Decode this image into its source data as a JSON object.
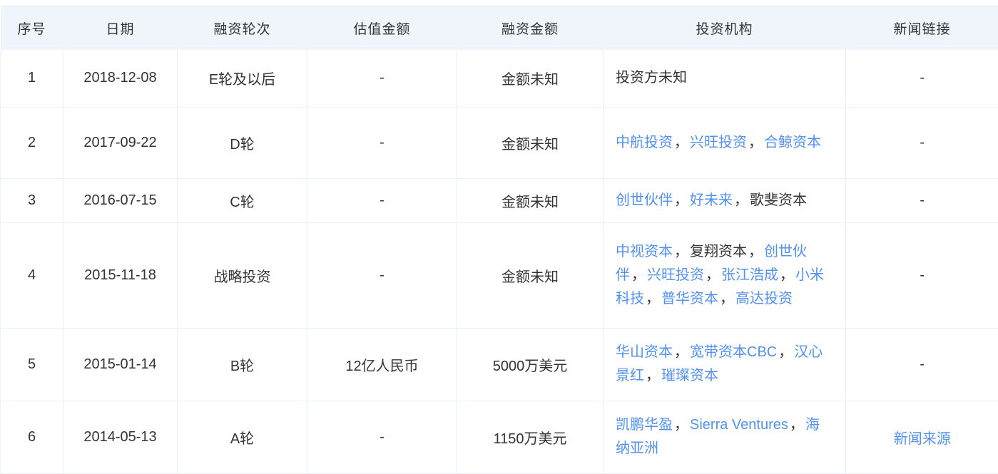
{
  "colors": {
    "text": "#333333",
    "link": "#5291ee",
    "header_bg": "#eff5fb",
    "border": "#e8eef5"
  },
  "table": {
    "separator": "，",
    "columns": [
      {
        "key": "index",
        "label": "序号"
      },
      {
        "key": "date",
        "label": "日期"
      },
      {
        "key": "round",
        "label": "融资轮次"
      },
      {
        "key": "valuation",
        "label": "估值金额"
      },
      {
        "key": "amount",
        "label": "融资金额"
      },
      {
        "key": "investors",
        "label": "投资机构"
      },
      {
        "key": "news",
        "label": "新闻链接"
      }
    ],
    "rows": [
      {
        "index": "1",
        "date": "2018-12-08",
        "round": "E轮及以后",
        "valuation": "-",
        "amount": "金额未知",
        "investors": [
          {
            "text": "投资方未知",
            "link": false
          }
        ],
        "news": {
          "text": "-",
          "link": false
        }
      },
      {
        "index": "2",
        "date": "2017-09-22",
        "round": "D轮",
        "valuation": "-",
        "amount": "金额未知",
        "investors": [
          {
            "text": "中航投资",
            "link": true
          },
          {
            "text": "兴旺投资",
            "link": true
          },
          {
            "text": "合鲸资本",
            "link": true
          }
        ],
        "news": {
          "text": "-",
          "link": false
        }
      },
      {
        "index": "3",
        "date": "2016-07-15",
        "round": "C轮",
        "valuation": "-",
        "amount": "金额未知",
        "investors": [
          {
            "text": "创世伙伴",
            "link": true
          },
          {
            "text": "好未来",
            "link": true
          },
          {
            "text": "歌斐资本",
            "link": false
          }
        ],
        "news": {
          "text": "-",
          "link": false
        }
      },
      {
        "index": "4",
        "date": "2015-11-18",
        "round": "战略投资",
        "valuation": "-",
        "amount": "金额未知",
        "investors": [
          {
            "text": "中视资本",
            "link": true
          },
          {
            "text": "复翔资本",
            "link": false
          },
          {
            "text": "创世伙伴",
            "link": true
          },
          {
            "text": "兴旺投资",
            "link": true
          },
          {
            "text": "张江浩成",
            "link": true
          },
          {
            "text": "小米科技",
            "link": true
          },
          {
            "text": "普华资本",
            "link": true
          },
          {
            "text": "高达投资",
            "link": true
          }
        ],
        "news": {
          "text": "-",
          "link": false
        }
      },
      {
        "index": "5",
        "date": "2015-01-14",
        "round": "B轮",
        "valuation": "12亿人民币",
        "amount": "5000万美元",
        "investors": [
          {
            "text": "华山资本",
            "link": true
          },
          {
            "text": "宽带资本CBC",
            "link": true
          },
          {
            "text": "汉心景红",
            "link": true
          },
          {
            "text": "璀璨资本",
            "link": true
          }
        ],
        "news": {
          "text": "-",
          "link": false
        }
      },
      {
        "index": "6",
        "date": "2014-05-13",
        "round": "A轮",
        "valuation": "-",
        "amount": "1150万美元",
        "investors": [
          {
            "text": "凯鹏华盈",
            "link": true
          },
          {
            "text": "Sierra Ventures",
            "link": true
          },
          {
            "text": "海纳亚洲",
            "link": true
          }
        ],
        "news": {
          "text": "新闻来源",
          "link": true
        }
      }
    ]
  }
}
